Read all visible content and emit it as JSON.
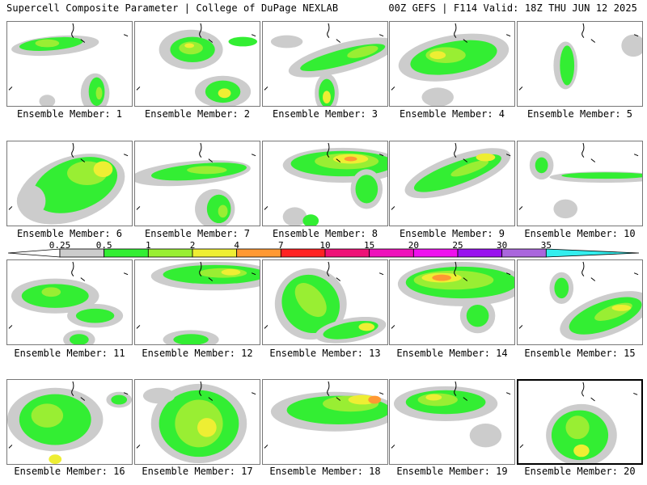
{
  "header": {
    "title_left": "Supercell Composite Parameter | College of DuPage NEXLAB",
    "title_right": "00Z GEFS | F114 Valid: 18Z THU JUN 12 2025"
  },
  "legend": {
    "levels": [
      "0.25",
      "0.5",
      "1",
      "2",
      "4",
      "7",
      "10",
      "15",
      "20",
      "25",
      "30",
      "35"
    ],
    "colors": [
      "#cccccc",
      "#33ee33",
      "#99ee33",
      "#eeee33",
      "#ff9933",
      "#ff2222",
      "#ee1177",
      "#ee11bb",
      "#ee11ee",
      "#9911ee",
      "#aa66dd",
      "#33eeee"
    ]
  },
  "members": [
    {
      "label": "Ensemble Member: 1"
    },
    {
      "label": "Ensemble Member: 2"
    },
    {
      "label": "Ensemble Member: 3"
    },
    {
      "label": "Ensemble Member: 4"
    },
    {
      "label": "Ensemble Member: 5"
    },
    {
      "label": "Ensemble Member: 6"
    },
    {
      "label": "Ensemble Member: 7"
    },
    {
      "label": "Ensemble Member: 8"
    },
    {
      "label": "Ensemble Member: 9"
    },
    {
      "label": "Ensemble Member: 10"
    },
    {
      "label": "Ensemble Member: 11"
    },
    {
      "label": "Ensemble Member: 12"
    },
    {
      "label": "Ensemble Member: 13"
    },
    {
      "label": "Ensemble Member: 14"
    },
    {
      "label": "Ensemble Member: 15"
    },
    {
      "label": "Ensemble Member: 16"
    },
    {
      "label": "Ensemble Member: 17"
    },
    {
      "label": "Ensemble Member: 18"
    },
    {
      "label": "Ensemble Member: 19"
    },
    {
      "label": "Ensemble Member: 20",
      "selected": true
    }
  ]
}
